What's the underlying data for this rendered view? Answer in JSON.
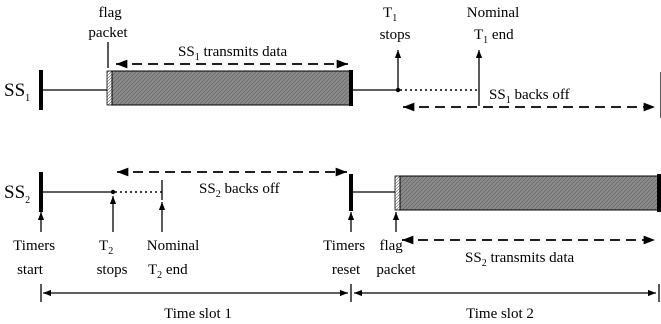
{
  "stations": {
    "ss1": {
      "base": "SS",
      "sub": "1"
    },
    "ss2": {
      "base": "SS",
      "sub": "2"
    }
  },
  "labels": {
    "flag_packet_1": [
      "flag",
      "packet"
    ],
    "ss1_transmits": {
      "pre": "SS",
      "sub": "1",
      "post": " transmits data"
    },
    "t1_stops": {
      "base": "T",
      "sub": "1",
      "line2": "stops"
    },
    "nominal_t1_end": {
      "line1": "Nominal",
      "base": "T",
      "sub": "1",
      "post": " end"
    },
    "ss1_backs_off": {
      "pre": "SS",
      "sub": "1",
      "post": " backs off"
    },
    "ss2_backs_off": {
      "pre": "SS",
      "sub": "2",
      "post": " backs off"
    },
    "timers_start": [
      "Timers",
      "start"
    ],
    "t2_stops": {
      "base": "T",
      "sub": "2",
      "line2": "stops"
    },
    "nominal_t2_end": {
      "line1": "Nominal",
      "base": "T",
      "sub": "2",
      "post": " end"
    },
    "timers_reset": [
      "Timers",
      "reset"
    ],
    "flag_packet_2": [
      "flag",
      "packet"
    ],
    "ss2_transmits": {
      "pre": "SS",
      "sub": "2",
      "post": " transmits data"
    },
    "time_slot_1": "Time slot 1",
    "time_slot_2": "Time slot 2"
  },
  "colors": {
    "line": "#000000",
    "hatch_bg": "#8c8c8c",
    "hatch_line": "#6a6a6a"
  }
}
